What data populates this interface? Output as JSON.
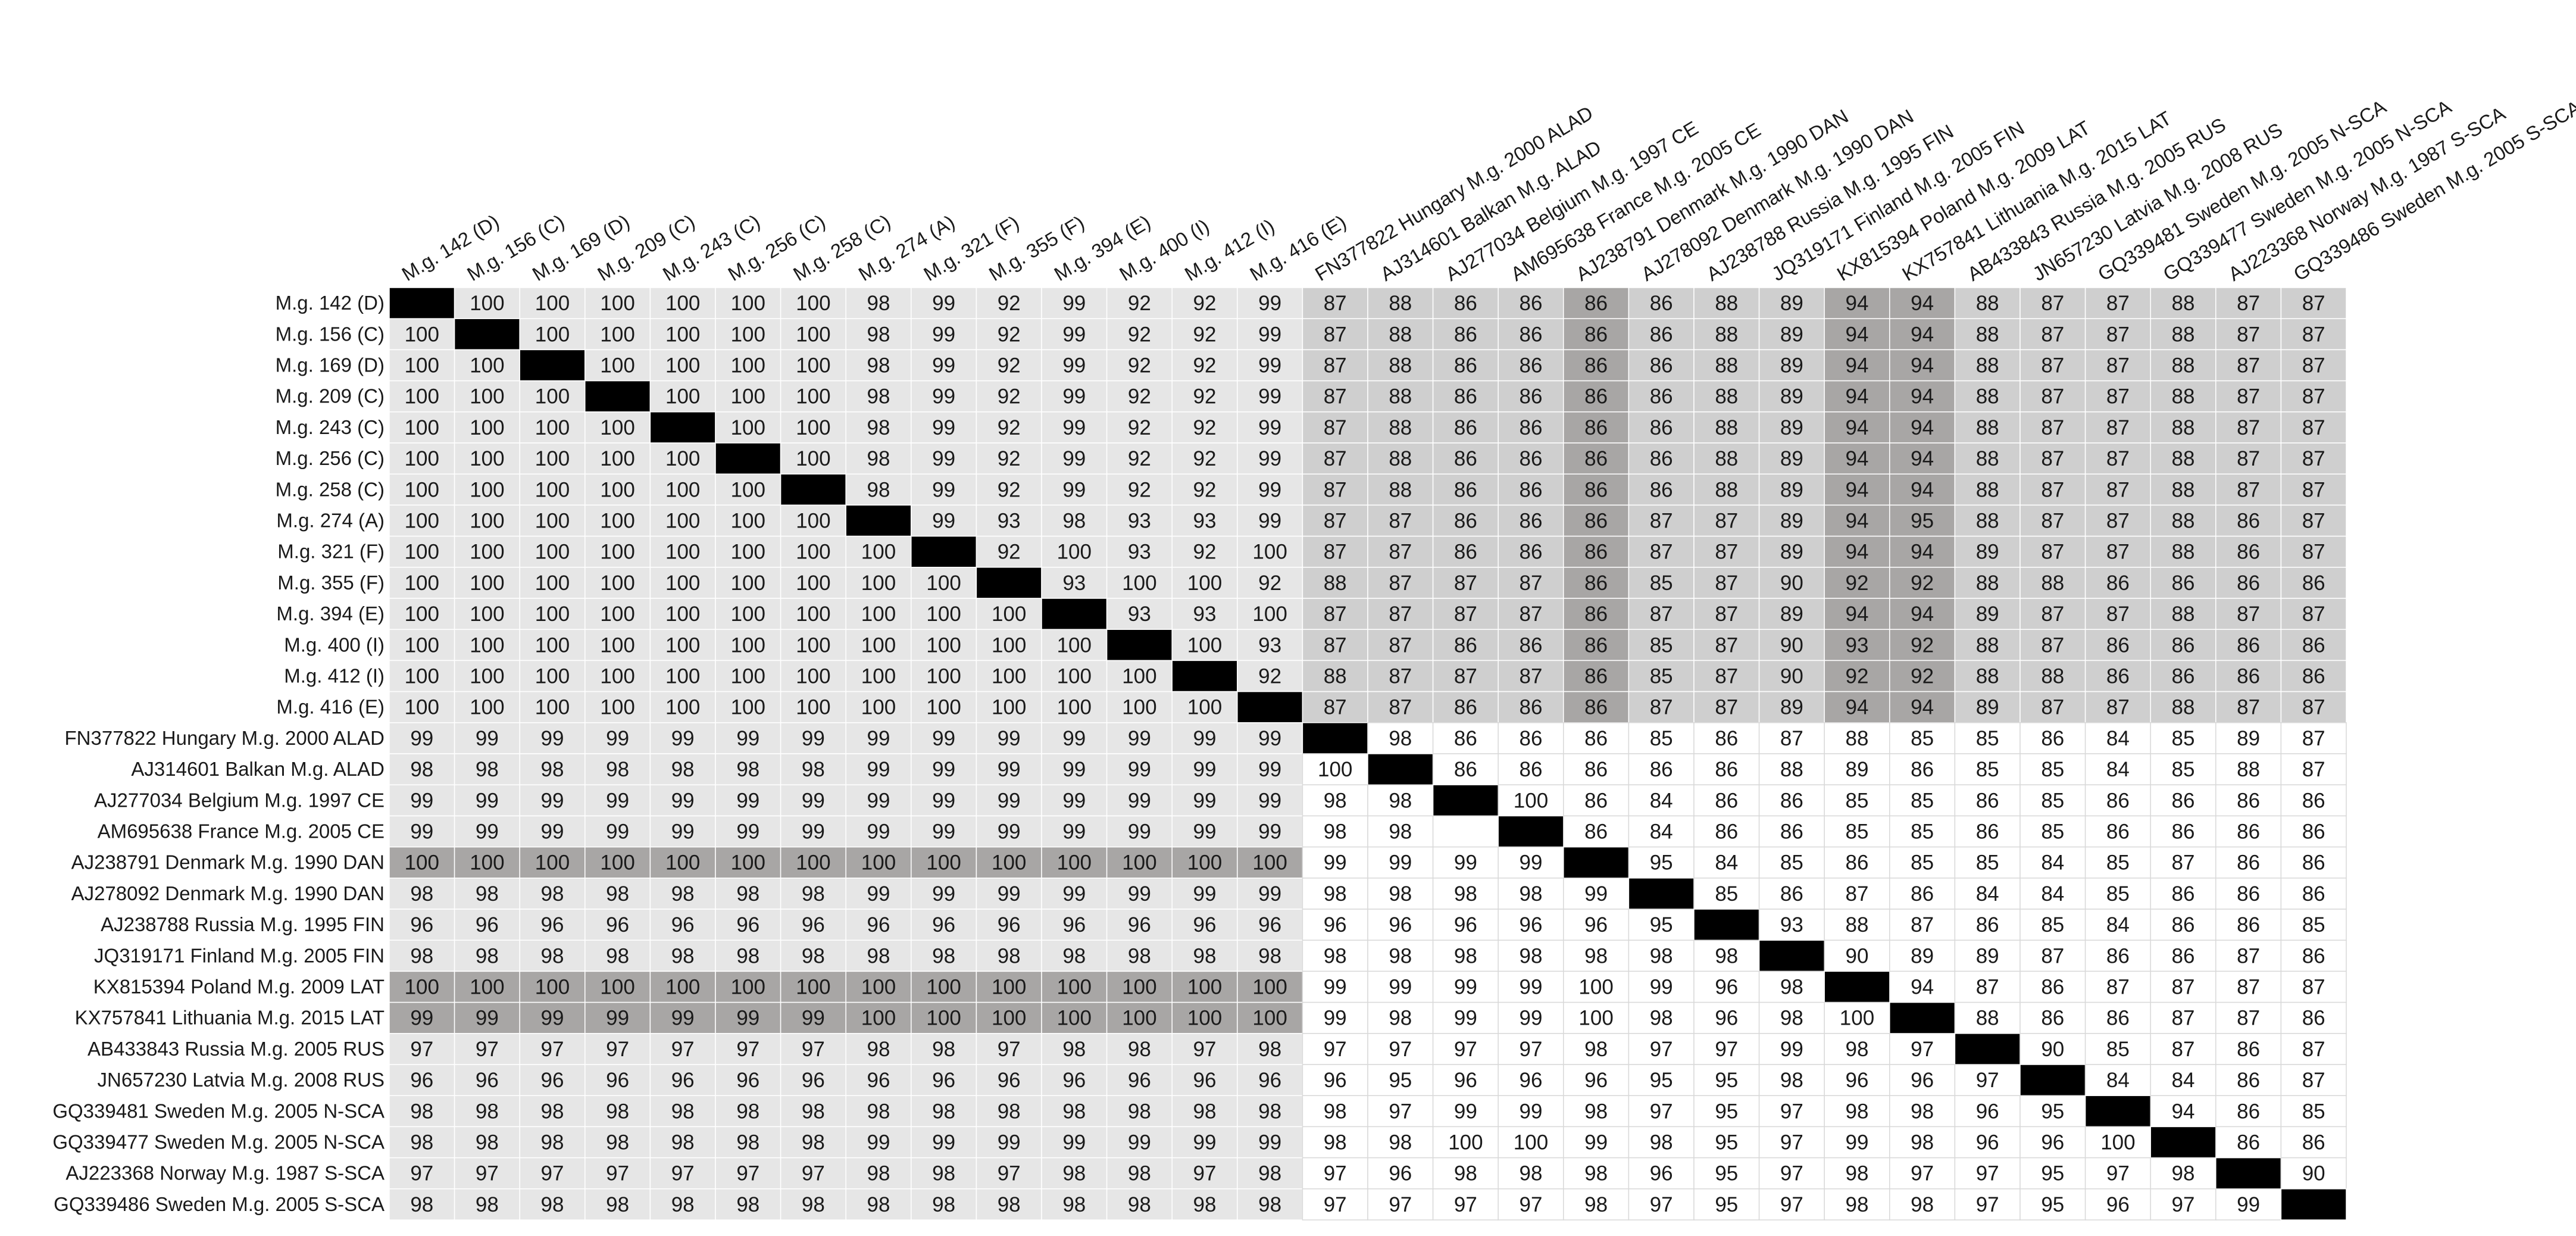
{
  "chart_data": {
    "type": "heatmap",
    "title": "",
    "colors": {
      "white": "#ffffff",
      "light": "#e6e6e6",
      "mid": "#cfcfcf",
      "dark": "#a8a6a5",
      "diagonal": "#000000",
      "text": "#1a1a1a",
      "line": "#ffffff"
    },
    "row_labels": [
      "M.g. 142 (D)",
      "M.g. 156 (C)",
      "M.g. 169 (D)",
      "M.g. 209 (C)",
      "M.g. 243 (C)",
      "M.g. 256 (C)",
      "M.g. 258 (C)",
      "M.g. 274 (A)",
      "M.g. 321 (F)",
      "M.g. 355 (F)",
      "M.g. 394 (E)",
      "M.g. 400 (I)",
      "M.g. 412 (I)",
      "M.g. 416 (E)",
      "FN377822 Hungary M.g. 2000 ALAD",
      "AJ314601 Balkan M.g. ALAD",
      "AJ277034 Belgium M.g. 1997 CE",
      "AM695638 France M.g. 2005 CE",
      "AJ238791 Denmark M.g. 1990 DAN",
      "AJ278092 Denmark M.g. 1990 DAN",
      "AJ238788 Russia M.g. 1995 FIN",
      "JQ319171 Finland M.g. 2005 FIN",
      "KX815394 Poland M.g. 2009 LAT",
      "KX757841 Lithuania M.g. 2015 LAT",
      "AB433843 Russia M.g. 2005 RUS",
      "JN657230 Latvia M.g. 2008 RUS",
      "GQ339481 Sweden M.g. 2005 N-SCA",
      "GQ339477 Sweden M.g. 2005 N-SCA",
      "AJ223368 Norway M.g. 1987 S-SCA",
      "GQ339486 Sweden M.g. 2005 S-SCA"
    ],
    "column_labels": [
      "M.g. 142 (D)",
      "M.g. 156 (C)",
      "M.g. 169 (D)",
      "M.g. 209 (C)",
      "M.g. 243 (C)",
      "M.g. 256 (C)",
      "M.g. 258 (C)",
      "M.g. 274 (A)",
      "M.g. 321 (F)",
      "M.g. 355 (F)",
      "M.g. 394 (E)",
      "M.g. 400 (I)",
      "M.g. 412 (I)",
      "M.g. 416 (E)",
      "FN377822 Hungary M.g. 2000 ALAD",
      "AJ314601 Balkan M.g. ALAD",
      "AJ277034 Belgium M.g. 1997 CE",
      "AM695638 France M.g. 2005 CE",
      "AJ238791 Denmark M.g. 1990 DAN",
      "AJ278092 Denmark M.g. 1990 DAN",
      "AJ238788 Russia M.g. 1995 FIN",
      "JQ319171 Finland M.g. 2005 FIN",
      "KX815394 Poland M.g. 2009 LAT",
      "KX757841 Lithuania M.g. 2015 LAT",
      "AB433843 Russia M.g. 2005 RUS",
      "JN657230 Latvia M.g. 2008 RUS",
      "GQ339481 Sweden M.g. 2005 N-SCA",
      "GQ339477 Sweden M.g. 2005 N-SCA",
      "AJ223368 Norway M.g. 1987 S-SCA",
      "GQ339486 Sweden M.g. 2005 S-SCA"
    ],
    "matrix": [
      [
        null,
        100,
        100,
        100,
        100,
        100,
        100,
        98,
        99,
        92,
        99,
        92,
        92,
        99,
        87,
        88,
        86,
        86,
        86,
        86,
        88,
        89,
        94,
        94,
        88,
        87,
        87,
        88,
        87,
        87
      ],
      [
        100,
        null,
        100,
        100,
        100,
        100,
        100,
        98,
        99,
        92,
        99,
        92,
        92,
        99,
        87,
        88,
        86,
        86,
        86,
        86,
        88,
        89,
        94,
        94,
        88,
        87,
        87,
        88,
        87,
        87
      ],
      [
        100,
        100,
        null,
        100,
        100,
        100,
        100,
        98,
        99,
        92,
        99,
        92,
        92,
        99,
        87,
        88,
        86,
        86,
        86,
        86,
        88,
        89,
        94,
        94,
        88,
        87,
        87,
        88,
        87,
        87
      ],
      [
        100,
        100,
        100,
        null,
        100,
        100,
        100,
        98,
        99,
        92,
        99,
        92,
        92,
        99,
        87,
        88,
        86,
        86,
        86,
        86,
        88,
        89,
        94,
        94,
        88,
        87,
        87,
        88,
        87,
        87
      ],
      [
        100,
        100,
        100,
        100,
        null,
        100,
        100,
        98,
        99,
        92,
        99,
        92,
        92,
        99,
        87,
        88,
        86,
        86,
        86,
        86,
        88,
        89,
        94,
        94,
        88,
        87,
        87,
        88,
        87,
        87
      ],
      [
        100,
        100,
        100,
        100,
        100,
        null,
        100,
        98,
        99,
        92,
        99,
        92,
        92,
        99,
        87,
        88,
        86,
        86,
        86,
        86,
        88,
        89,
        94,
        94,
        88,
        87,
        87,
        88,
        87,
        87
      ],
      [
        100,
        100,
        100,
        100,
        100,
        100,
        null,
        98,
        99,
        92,
        99,
        92,
        92,
        99,
        87,
        88,
        86,
        86,
        86,
        86,
        88,
        89,
        94,
        94,
        88,
        87,
        87,
        88,
        87,
        87
      ],
      [
        100,
        100,
        100,
        100,
        100,
        100,
        100,
        null,
        99,
        93,
        98,
        93,
        93,
        99,
        87,
        87,
        86,
        86,
        86,
        87,
        87,
        89,
        94,
        95,
        88,
        87,
        87,
        88,
        86,
        87
      ],
      [
        100,
        100,
        100,
        100,
        100,
        100,
        100,
        100,
        null,
        92,
        100,
        93,
        92,
        100,
        87,
        87,
        86,
        86,
        86,
        87,
        87,
        89,
        94,
        94,
        89,
        87,
        87,
        88,
        86,
        87
      ],
      [
        100,
        100,
        100,
        100,
        100,
        100,
        100,
        100,
        100,
        null,
        93,
        100,
        100,
        92,
        88,
        87,
        87,
        87,
        86,
        85,
        87,
        90,
        92,
        92,
        88,
        88,
        86,
        86,
        86,
        86
      ],
      [
        100,
        100,
        100,
        100,
        100,
        100,
        100,
        100,
        100,
        100,
        null,
        93,
        93,
        100,
        87,
        87,
        87,
        87,
        86,
        87,
        87,
        89,
        94,
        94,
        89,
        87,
        87,
        88,
        87,
        87
      ],
      [
        100,
        100,
        100,
        100,
        100,
        100,
        100,
        100,
        100,
        100,
        100,
        null,
        100,
        93,
        87,
        87,
        86,
        86,
        86,
        85,
        87,
        90,
        93,
        92,
        88,
        87,
        86,
        86,
        86,
        86
      ],
      [
        100,
        100,
        100,
        100,
        100,
        100,
        100,
        100,
        100,
        100,
        100,
        100,
        null,
        92,
        88,
        87,
        87,
        87,
        86,
        85,
        87,
        90,
        92,
        92,
        88,
        88,
        86,
        86,
        86,
        86
      ],
      [
        100,
        100,
        100,
        100,
        100,
        100,
        100,
        100,
        100,
        100,
        100,
        100,
        100,
        null,
        87,
        87,
        86,
        86,
        86,
        87,
        87,
        89,
        94,
        94,
        89,
        87,
        87,
        88,
        87,
        87
      ],
      [
        99,
        99,
        99,
        99,
        99,
        99,
        99,
        99,
        99,
        99,
        99,
        99,
        99,
        99,
        null,
        98,
        86,
        86,
        86,
        85,
        86,
        87,
        88,
        85,
        85,
        86,
        84,
        85,
        89,
        87
      ],
      [
        98,
        98,
        98,
        98,
        98,
        98,
        98,
        99,
        99,
        99,
        99,
        99,
        99,
        99,
        100,
        null,
        86,
        86,
        86,
        86,
        86,
        88,
        89,
        86,
        85,
        85,
        84,
        85,
        88,
        87
      ],
      [
        99,
        99,
        99,
        99,
        99,
        99,
        99,
        99,
        99,
        99,
        99,
        99,
        99,
        99,
        98,
        98,
        null,
        100,
        86,
        84,
        86,
        86,
        85,
        85,
        86,
        85,
        86,
        86,
        86,
        86
      ],
      [
        99,
        99,
        99,
        99,
        99,
        99,
        99,
        99,
        99,
        99,
        99,
        99,
        99,
        99,
        98,
        98,
        null,
        null,
        86,
        84,
        86,
        86,
        85,
        85,
        86,
        85,
        86,
        86,
        86,
        86
      ],
      [
        100,
        100,
        100,
        100,
        100,
        100,
        100,
        100,
        100,
        100,
        100,
        100,
        100,
        100,
        99,
        99,
        99,
        99,
        null,
        95,
        84,
        85,
        86,
        85,
        85,
        84,
        85,
        87,
        86,
        86
      ],
      [
        98,
        98,
        98,
        98,
        98,
        98,
        98,
        99,
        99,
        99,
        99,
        99,
        99,
        99,
        98,
        98,
        98,
        98,
        99,
        null,
        85,
        86,
        87,
        86,
        84,
        84,
        85,
        86,
        86,
        86
      ],
      [
        96,
        96,
        96,
        96,
        96,
        96,
        96,
        96,
        96,
        96,
        96,
        96,
        96,
        96,
        96,
        96,
        96,
        96,
        96,
        95,
        null,
        93,
        88,
        87,
        86,
        85,
        84,
        86,
        86,
        85
      ],
      [
        98,
        98,
        98,
        98,
        98,
        98,
        98,
        98,
        98,
        98,
        98,
        98,
        98,
        98,
        98,
        98,
        98,
        98,
        98,
        98,
        98,
        null,
        90,
        89,
        89,
        87,
        86,
        86,
        87,
        86
      ],
      [
        100,
        100,
        100,
        100,
        100,
        100,
        100,
        100,
        100,
        100,
        100,
        100,
        100,
        100,
        99,
        99,
        99,
        99,
        100,
        99,
        96,
        98,
        null,
        94,
        87,
        86,
        87,
        87,
        87,
        87
      ],
      [
        99,
        99,
        99,
        99,
        99,
        99,
        99,
        100,
        100,
        100,
        100,
        100,
        100,
        100,
        99,
        98,
        99,
        99,
        100,
        98,
        96,
        98,
        100,
        null,
        88,
        86,
        86,
        87,
        87,
        86
      ],
      [
        97,
        97,
        97,
        97,
        97,
        97,
        97,
        98,
        98,
        97,
        98,
        98,
        97,
        98,
        97,
        97,
        97,
        97,
        98,
        97,
        97,
        99,
        98,
        97,
        null,
        90,
        85,
        87,
        86,
        87
      ],
      [
        96,
        96,
        96,
        96,
        96,
        96,
        96,
        96,
        96,
        96,
        96,
        96,
        96,
        96,
        96,
        95,
        96,
        96,
        96,
        95,
        95,
        98,
        96,
        96,
        97,
        null,
        84,
        84,
        86,
        87
      ],
      [
        98,
        98,
        98,
        98,
        98,
        98,
        98,
        98,
        98,
        98,
        98,
        98,
        98,
        98,
        98,
        97,
        99,
        99,
        98,
        97,
        95,
        97,
        98,
        98,
        96,
        95,
        null,
        94,
        86,
        85
      ],
      [
        98,
        98,
        98,
        98,
        98,
        98,
        98,
        99,
        99,
        99,
        99,
        99,
        99,
        99,
        98,
        98,
        100,
        100,
        99,
        98,
        95,
        97,
        99,
        98,
        96,
        96,
        100,
        null,
        86,
        86
      ],
      [
        97,
        97,
        97,
        97,
        97,
        97,
        97,
        98,
        98,
        97,
        98,
        98,
        97,
        98,
        97,
        96,
        98,
        98,
        98,
        96,
        95,
        97,
        98,
        97,
        97,
        95,
        97,
        98,
        null,
        90
      ],
      [
        98,
        98,
        98,
        98,
        98,
        98,
        98,
        98,
        98,
        98,
        98,
        98,
        98,
        98,
        97,
        97,
        97,
        97,
        98,
        97,
        95,
        97,
        98,
        98,
        97,
        95,
        96,
        97,
        99,
        null
      ]
    ],
    "shading": {
      "light_region": "rows 15-30 x columns 1-14 and rows 1-14 x columns 1-14",
      "mid_region": "rows 1-14 x columns 15-30",
      "dark_rows": [
        "AJ238791 Denmark M.g. 1990 DAN",
        "KX815394 Poland M.g. 2009 LAT",
        "KX757841 Lithuania M.g. 2015 LAT"
      ],
      "dark_columns": [
        "AJ238791 Denmark M.g. 1990 DAN",
        "KX815394 Poland M.g. 2009 LAT",
        "KX757841 Lithuania M.g. 2015 LAT"
      ],
      "diagonal": "black"
    }
  }
}
